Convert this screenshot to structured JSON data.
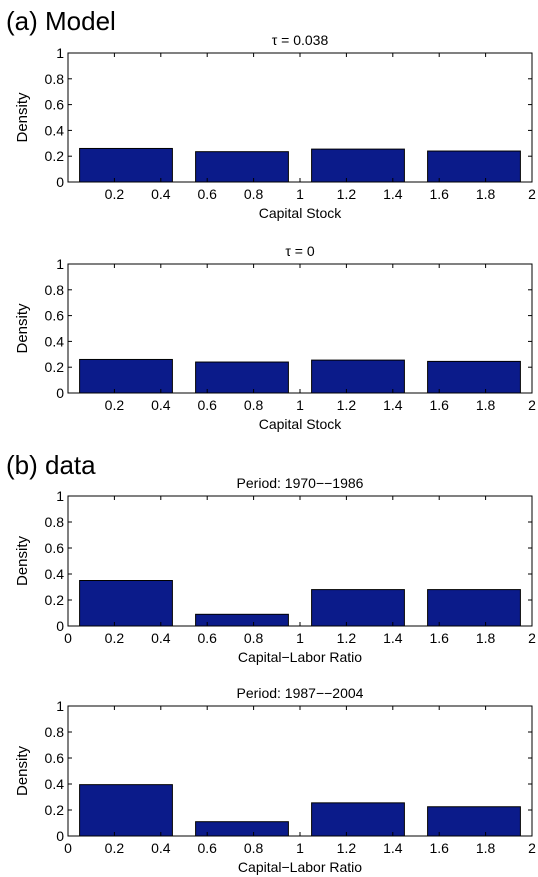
{
  "sections": [
    {
      "label": "(a) Model"
    },
    {
      "label": "(b) data"
    }
  ],
  "chart_data": [
    {
      "type": "bar",
      "title": "τ = 0.038",
      "xlabel": "Capital Stock",
      "ylabel": "Density",
      "xlim": [
        0,
        2
      ],
      "ylim": [
        0,
        1
      ],
      "xticks": [
        "0.2",
        "0.4",
        "0.6",
        "0.8",
        "1",
        "1.2",
        "1.4",
        "1.6",
        "1.8",
        "2"
      ],
      "yticks": [
        "0",
        "0.2",
        "0.4",
        "0.6",
        "0.8",
        "1"
      ],
      "bars": [
        {
          "x0": 0.05,
          "x1": 0.45,
          "value": 0.26
        },
        {
          "x0": 0.55,
          "x1": 0.95,
          "value": 0.235
        },
        {
          "x0": 1.05,
          "x1": 1.45,
          "value": 0.255
        },
        {
          "x0": 1.55,
          "x1": 1.95,
          "value": 0.24
        }
      ],
      "bar_color": "#0b1b8a",
      "grid": false
    },
    {
      "type": "bar",
      "title": "τ = 0",
      "xlabel": "Capital Stock",
      "ylabel": "Density",
      "xlim": [
        0,
        2
      ],
      "ylim": [
        0,
        1
      ],
      "xticks": [
        "0.2",
        "0.4",
        "0.6",
        "0.8",
        "1",
        "1.2",
        "1.4",
        "1.6",
        "1.8",
        "2"
      ],
      "yticks": [
        "0",
        "0.2",
        "0.4",
        "0.6",
        "0.8",
        "1"
      ],
      "bars": [
        {
          "x0": 0.05,
          "x1": 0.45,
          "value": 0.26
        },
        {
          "x0": 0.55,
          "x1": 0.95,
          "value": 0.24
        },
        {
          "x0": 1.05,
          "x1": 1.45,
          "value": 0.255
        },
        {
          "x0": 1.55,
          "x1": 1.95,
          "value": 0.245
        }
      ],
      "bar_color": "#0b1b8a",
      "grid": false
    },
    {
      "type": "bar",
      "title": "Period: 1970−−1986",
      "xlabel": "Capital−Labor Ratio",
      "ylabel": "Density",
      "xlim": [
        0,
        2
      ],
      "ylim": [
        0,
        1
      ],
      "xticks": [
        "0",
        "0.2",
        "0.4",
        "0.6",
        "0.8",
        "1",
        "1.2",
        "1.4",
        "1.6",
        "1.8",
        "2"
      ],
      "yticks": [
        "0",
        "0.2",
        "0.4",
        "0.6",
        "0.8",
        "1"
      ],
      "bars": [
        {
          "x0": 0.05,
          "x1": 0.45,
          "value": 0.35
        },
        {
          "x0": 0.55,
          "x1": 0.95,
          "value": 0.09
        },
        {
          "x0": 1.05,
          "x1": 1.45,
          "value": 0.28
        },
        {
          "x0": 1.55,
          "x1": 1.95,
          "value": 0.28
        }
      ],
      "bar_color": "#0b1b8a",
      "grid": false
    },
    {
      "type": "bar",
      "title": "Period: 1987−−2004",
      "xlabel": "Capital−Labor Ratio",
      "ylabel": "Density",
      "xlim": [
        0,
        2
      ],
      "ylim": [
        0,
        1
      ],
      "xticks": [
        "0",
        "0.2",
        "0.4",
        "0.6",
        "0.8",
        "1",
        "1.2",
        "1.4",
        "1.6",
        "1.8",
        "2"
      ],
      "yticks": [
        "0",
        "0.2",
        "0.4",
        "0.6",
        "0.8",
        "1"
      ],
      "bars": [
        {
          "x0": 0.05,
          "x1": 0.45,
          "value": 0.395
        },
        {
          "x0": 0.55,
          "x1": 0.95,
          "value": 0.11
        },
        {
          "x0": 1.05,
          "x1": 1.45,
          "value": 0.255
        },
        {
          "x0": 1.55,
          "x1": 1.95,
          "value": 0.225
        }
      ],
      "bar_color": "#0b1b8a",
      "grid": false
    }
  ]
}
